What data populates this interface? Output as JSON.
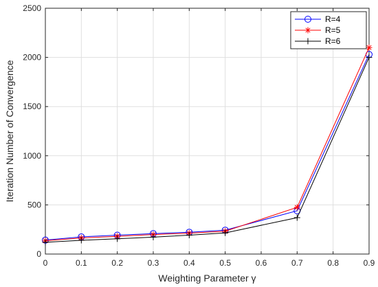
{
  "chart_data": {
    "type": "line",
    "xlabel": "Weighting Parameter γ",
    "ylabel": "Iteration Number of Convergence",
    "xlim": [
      0,
      0.9
    ],
    "ylim": [
      0,
      2500
    ],
    "x_ticks": [
      "0",
      "0.1",
      "0.2",
      "0.3",
      "0.4",
      "0.5",
      "0.6",
      "0.7",
      "0.8",
      "0.9"
    ],
    "y_ticks": [
      "0",
      "500",
      "1000",
      "1500",
      "2000",
      "2500"
    ],
    "grid": true,
    "legend_position": "top-right",
    "x": [
      0,
      0.1,
      0.2,
      0.3,
      0.4,
      0.5,
      0.7,
      0.9
    ],
    "series": [
      {
        "name": "R=4",
        "color": "#0000ff",
        "marker": "circle",
        "values": [
          142,
          175,
          192,
          208,
          222,
          243,
          440,
          2030
        ]
      },
      {
        "name": "R=5",
        "color": "#ff0000",
        "marker": "asterisk",
        "values": [
          135,
          163,
          180,
          198,
          212,
          232,
          475,
          2100
        ]
      },
      {
        "name": "R=6",
        "color": "#000000",
        "marker": "plus",
        "values": [
          120,
          140,
          155,
          172,
          192,
          215,
          370,
          2000
        ]
      }
    ]
  }
}
